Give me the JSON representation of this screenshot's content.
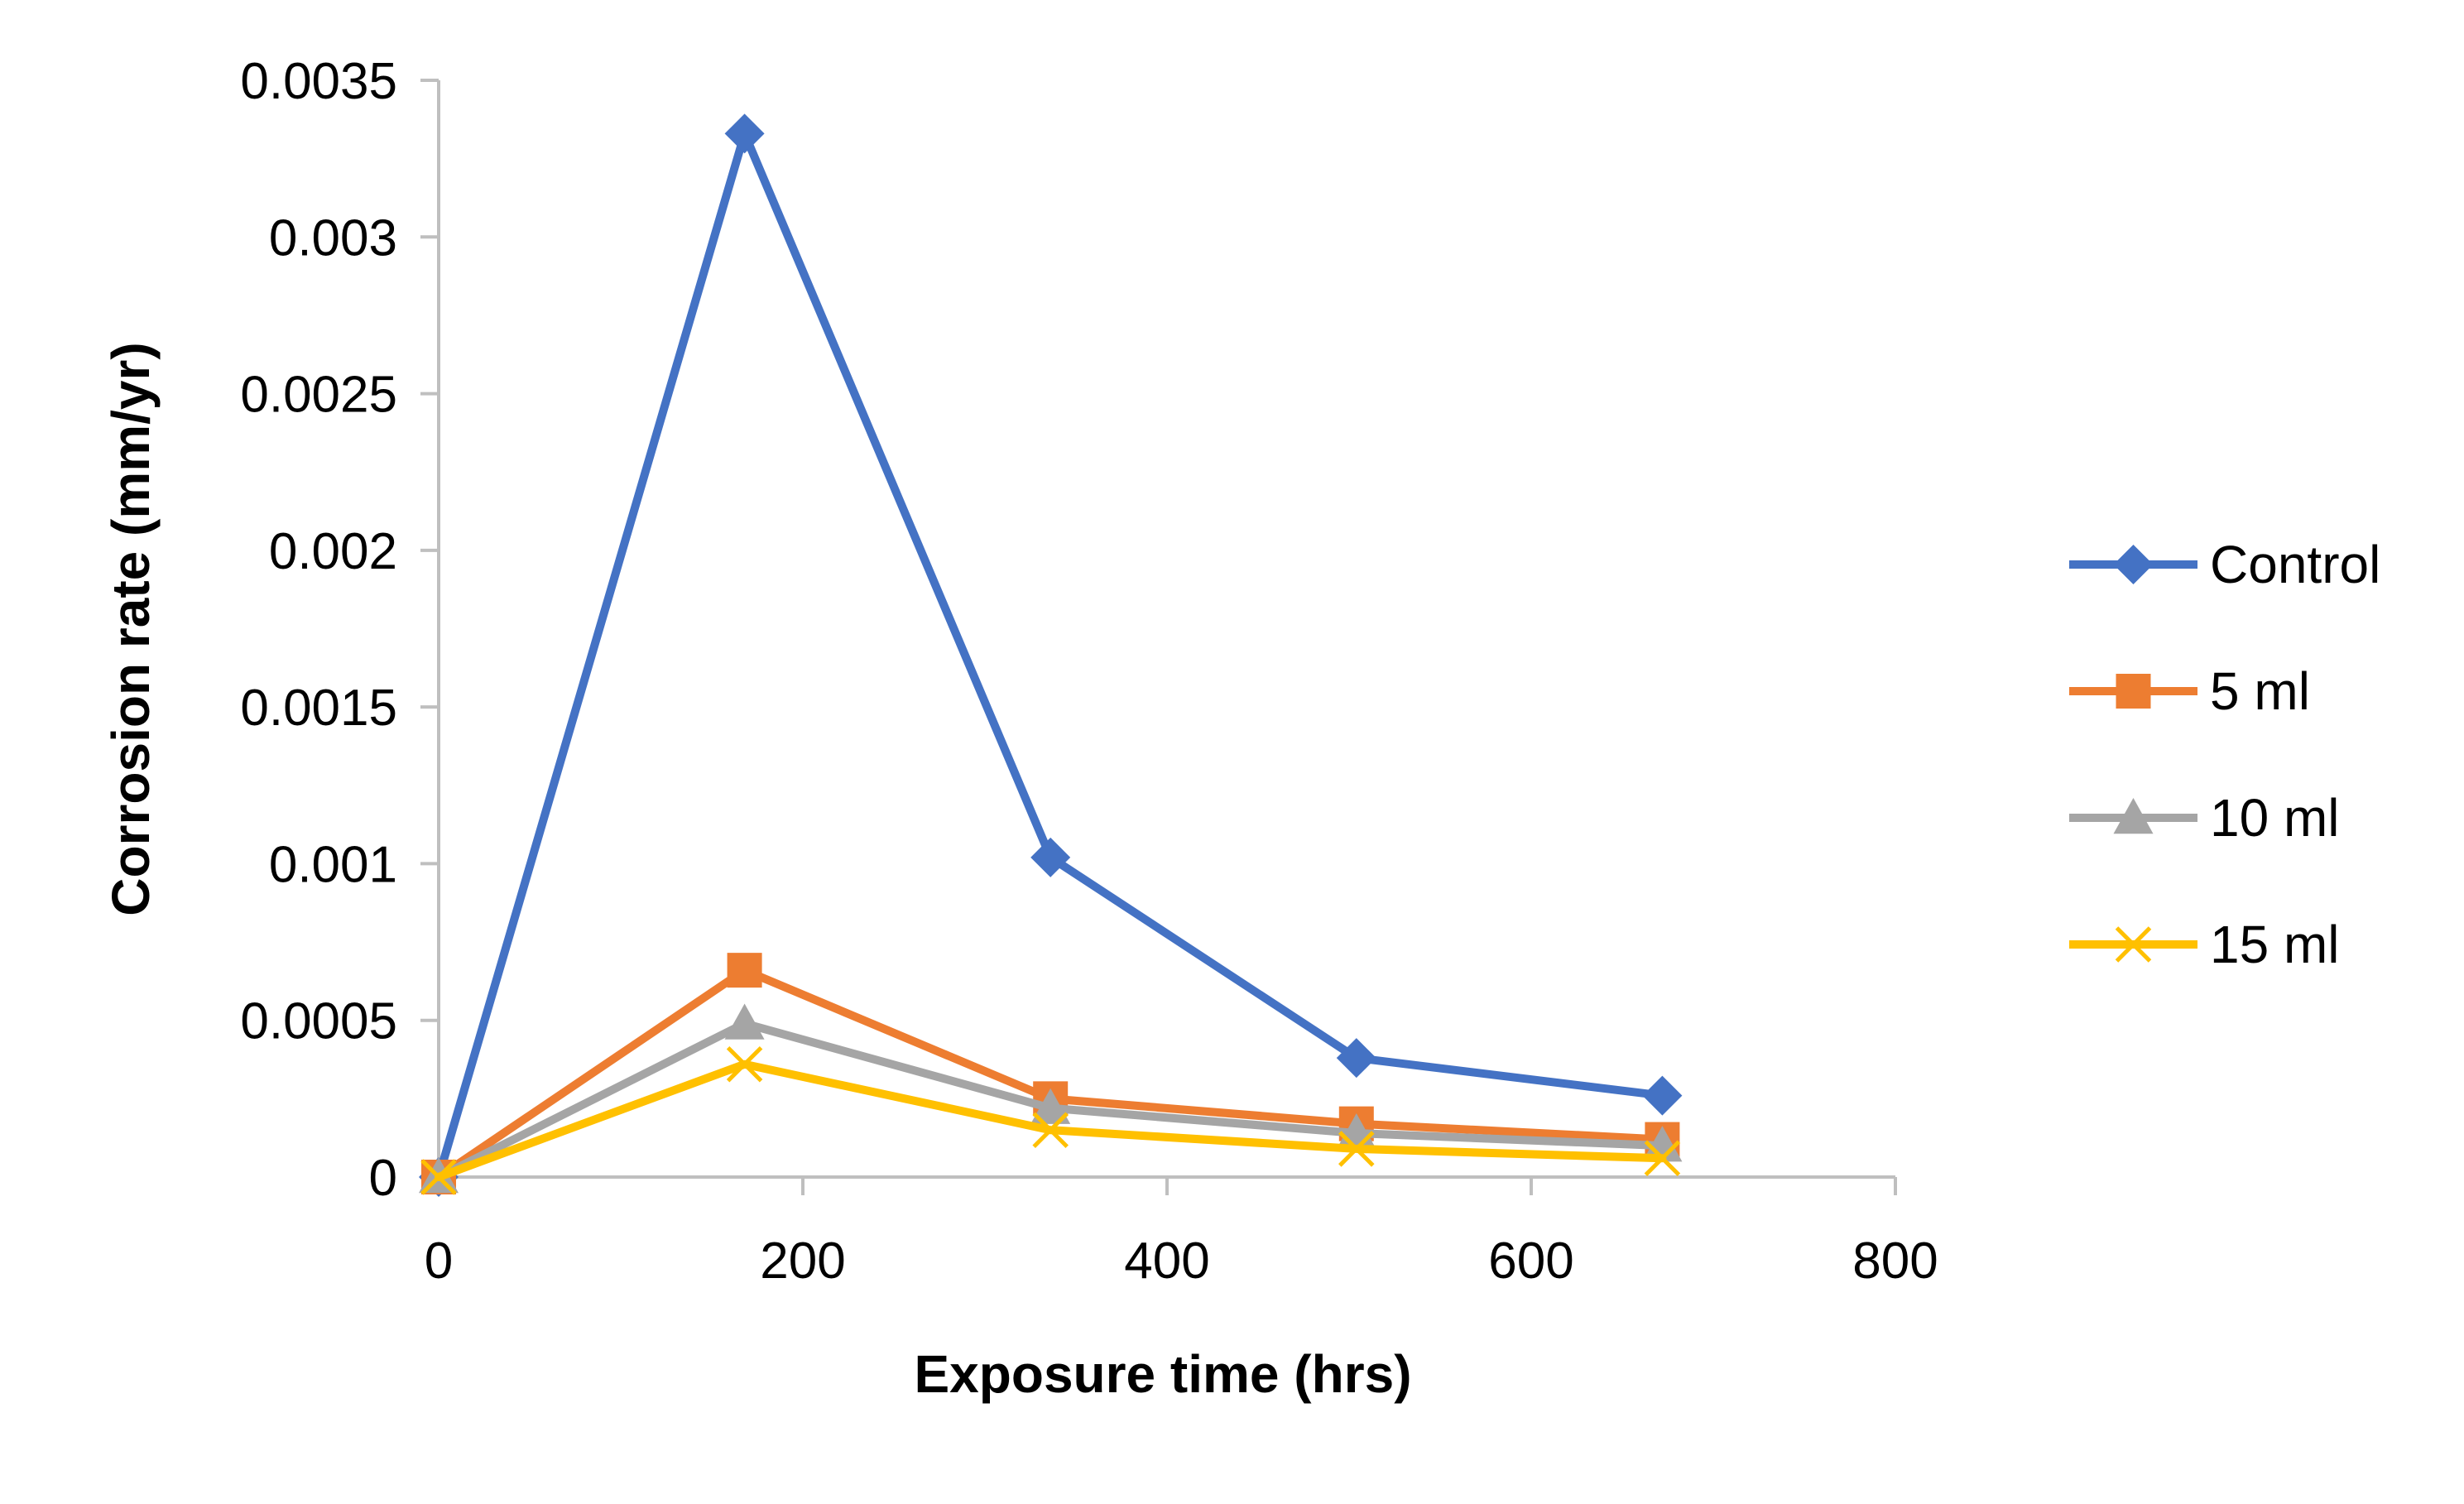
{
  "chart_data": {
    "type": "line",
    "title": "",
    "xlabel": "Exposure time (hrs)",
    "ylabel": "Corrosion rate (mm/yr)",
    "xlim": [
      0,
      800
    ],
    "ylim": [
      0,
      0.0035
    ],
    "x_ticks": [
      "0",
      "200",
      "400",
      "600",
      "800"
    ],
    "y_ticks": [
      "0",
      "0.0005",
      "0.001",
      "0.0015",
      "0.002",
      "0.0025",
      "0.003",
      "0.0035"
    ],
    "grid": false,
    "legend_position": "right",
    "x": [
      0,
      168,
      336,
      504,
      672
    ],
    "series": [
      {
        "name": "Control",
        "marker": "diamond",
        "color": "#4472C4",
        "values": [
          0,
          0.00333,
          0.00102,
          0.00038,
          0.00026
        ]
      },
      {
        "name": "5 ml",
        "marker": "square",
        "color": "#ED7D31",
        "values": [
          0,
          0.00066,
          0.00025,
          0.00017,
          0.00012
        ]
      },
      {
        "name": "10 ml",
        "marker": "triangle",
        "color": "#A5A5A5",
        "values": [
          0,
          0.00049,
          0.00022,
          0.00014,
          0.0001
        ]
      },
      {
        "name": "15 ml",
        "marker": "x",
        "color": "#FFC000",
        "values": [
          0,
          0.00036,
          0.00015,
          9e-05,
          6e-05
        ]
      }
    ]
  }
}
